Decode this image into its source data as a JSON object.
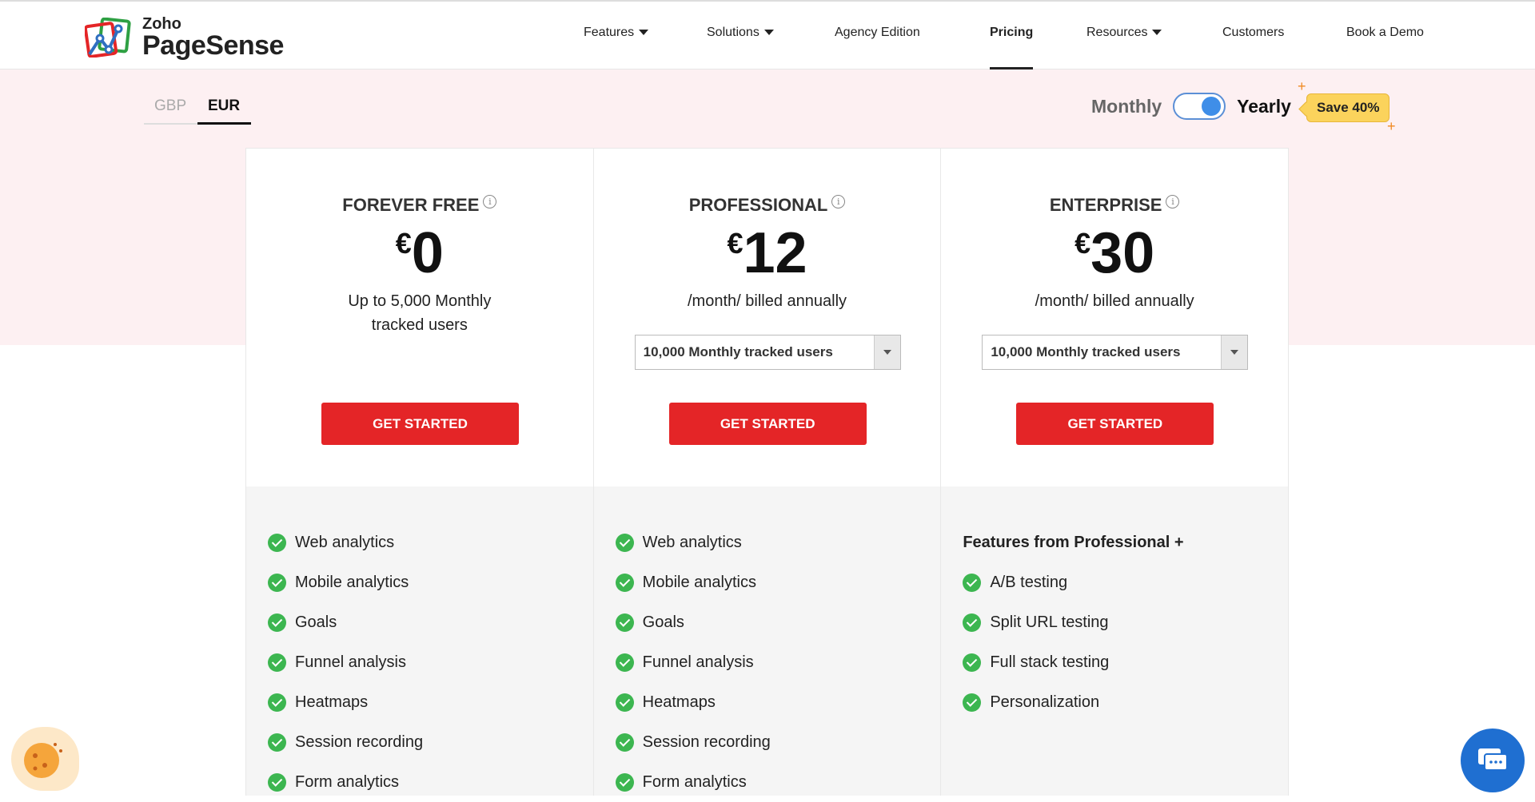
{
  "header": {
    "logo_top": "Zoho",
    "logo_main": "PageSense",
    "nav": [
      {
        "label": "Features",
        "dropdown": true
      },
      {
        "label": "Solutions",
        "dropdown": true
      },
      {
        "label": "Agency Edition"
      },
      {
        "label": "Pricing",
        "active": true
      },
      {
        "label": "Resources",
        "dropdown": true
      },
      {
        "label": "Customers"
      },
      {
        "label": "Book a Demo"
      }
    ]
  },
  "currency": {
    "options": [
      "GBP",
      "EUR"
    ],
    "selected": "EUR"
  },
  "billing": {
    "monthly": "Monthly",
    "yearly": "Yearly",
    "selected": "Yearly",
    "badge": "Save 40%"
  },
  "plans": [
    {
      "name": "FOREVER FREE",
      "currency": "€",
      "price": "0",
      "desc": "Up to 5,000 Monthly tracked users",
      "cta": "GET STARTED",
      "features": [
        "Web analytics",
        "Mobile analytics",
        "Goals",
        "Funnel analysis",
        "Heatmaps",
        "Session recording",
        "Form analytics"
      ]
    },
    {
      "name": "PROFESSIONAL",
      "currency": "€",
      "price": "12",
      "desc": "/month/ billed annually",
      "select": "10,000 Monthly tracked users",
      "cta": "GET STARTED",
      "features": [
        "Web analytics",
        "Mobile analytics",
        "Goals",
        "Funnel analysis",
        "Heatmaps",
        "Session recording",
        "Form analytics"
      ]
    },
    {
      "name": "ENTERPRISE",
      "currency": "€",
      "price": "30",
      "desc": "/month/ billed annually",
      "select": "10,000 Monthly tracked users",
      "cta": "GET STARTED",
      "features_heading": "Features from Professional +",
      "features": [
        "A/B testing",
        "Split URL testing",
        "Full stack testing",
        "Personalization"
      ]
    }
  ],
  "colors": {
    "accent": "#e42527",
    "check": "#3cb650",
    "band": "#fdf0f2",
    "toggle": "#3f8ee8",
    "badge": "#fbd35c"
  }
}
